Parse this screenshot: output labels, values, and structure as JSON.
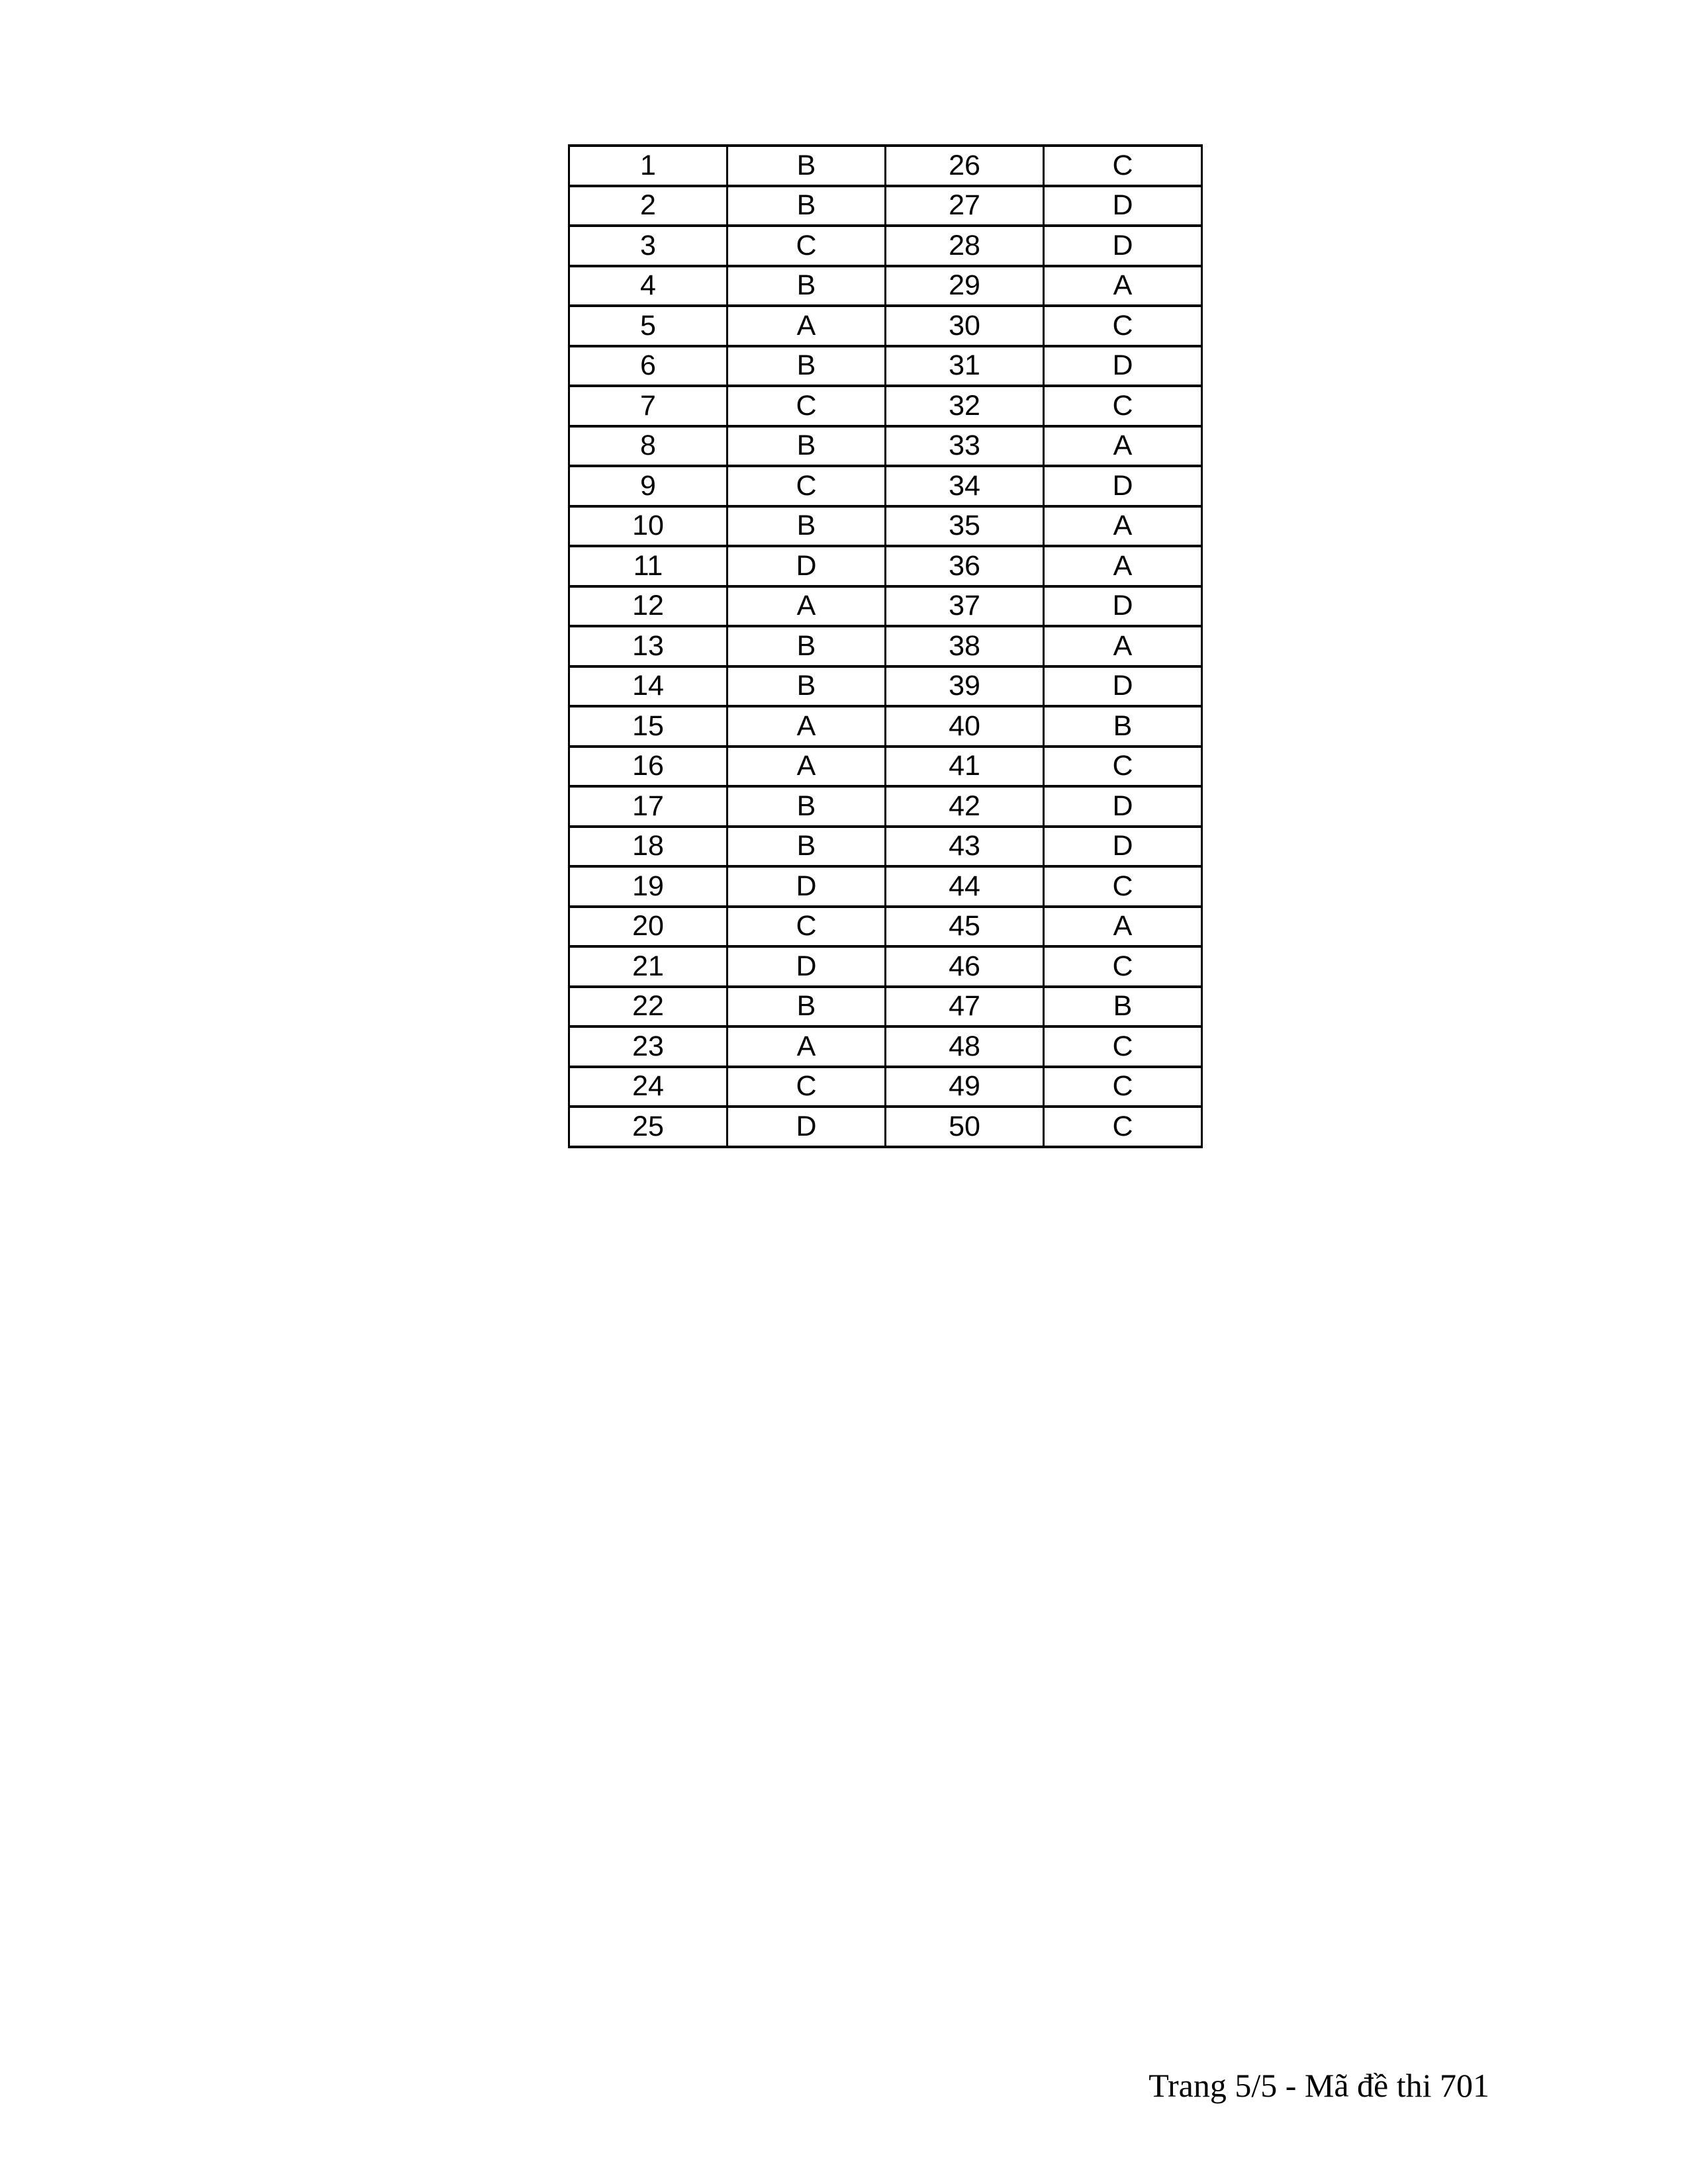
{
  "document": {
    "footer_text": "Trang 5/5 - Mã đề thi 701"
  },
  "answer_key": {
    "description": "answer key table: question number / answer letter, two pairs per row",
    "rows": [
      [
        "1",
        "B",
        "26",
        "C"
      ],
      [
        "2",
        "B",
        "27",
        "D"
      ],
      [
        "3",
        "C",
        "28",
        "D"
      ],
      [
        "4",
        "B",
        "29",
        "A"
      ],
      [
        "5",
        "A",
        "30",
        "C"
      ],
      [
        "6",
        "B",
        "31",
        "D"
      ],
      [
        "7",
        "C",
        "32",
        "C"
      ],
      [
        "8",
        "B",
        "33",
        "A"
      ],
      [
        "9",
        "C",
        "34",
        "D"
      ],
      [
        "10",
        "B",
        "35",
        "A"
      ],
      [
        "11",
        "D",
        "36",
        "A"
      ],
      [
        "12",
        "A",
        "37",
        "D"
      ],
      [
        "13",
        "B",
        "38",
        "A"
      ],
      [
        "14",
        "B",
        "39",
        "D"
      ],
      [
        "15",
        "A",
        "40",
        "B"
      ],
      [
        "16",
        "A",
        "41",
        "C"
      ],
      [
        "17",
        "B",
        "42",
        "D"
      ],
      [
        "18",
        "B",
        "43",
        "D"
      ],
      [
        "19",
        "D",
        "44",
        "C"
      ],
      [
        "20",
        "C",
        "45",
        "A"
      ],
      [
        "21",
        "D",
        "46",
        "C"
      ],
      [
        "22",
        "B",
        "47",
        "B"
      ],
      [
        "23",
        "A",
        "48",
        "C"
      ],
      [
        "24",
        "C",
        "49",
        "C"
      ],
      [
        "25",
        "D",
        "50",
        "C"
      ]
    ]
  }
}
